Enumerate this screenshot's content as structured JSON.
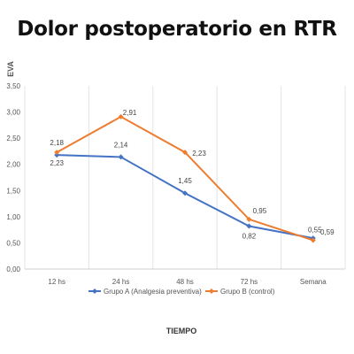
{
  "chart_data": {
    "type": "line",
    "title": "Dolor postoperatorio en RTR",
    "xlabel": "TIEMPO",
    "ylabel": "EVA",
    "categories": [
      "12 hs",
      "24 hs",
      "48 hs",
      "72 hs",
      "Semana"
    ],
    "ylim": [
      0,
      3.5
    ],
    "yticks": [
      "0,00",
      "0,50",
      "1,00",
      "1,50",
      "2,00",
      "2,50",
      "3,00",
      "3,50"
    ],
    "grid": "vertical",
    "legend": "bottom",
    "series": [
      {
        "name": "Grupo A (Analgesia preventiva)",
        "color": "#4472c4",
        "values": [
          2.18,
          2.14,
          1.45,
          0.82,
          0.59
        ],
        "labels": [
          "2,18",
          "2,14",
          "1,45",
          "0,82",
          "0,59"
        ]
      },
      {
        "name": "Grupo B (control)",
        "color": "#ed7d31",
        "values": [
          2.23,
          2.91,
          2.23,
          0.95,
          0.55
        ],
        "labels": [
          "2,23",
          "2,91",
          "2,23",
          "0,95",
          "0,55"
        ]
      }
    ]
  }
}
